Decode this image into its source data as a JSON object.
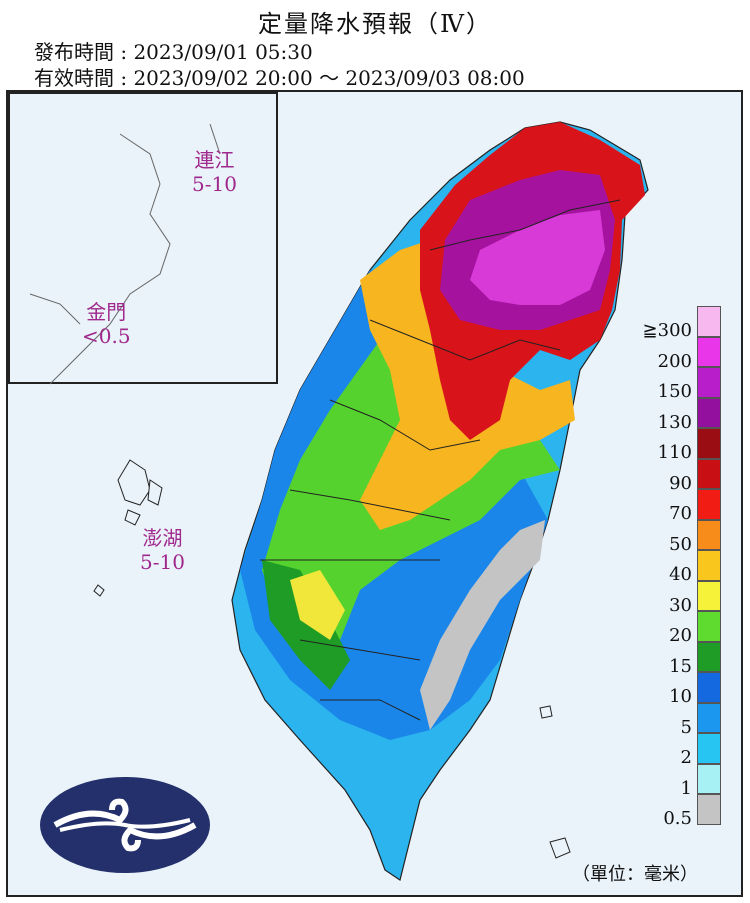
{
  "header": {
    "title": "定量降水預報（Ⅳ）",
    "issue_time": "發布時間 : 2023/09/01 05:30",
    "valid_time": "有效時間 : 2023/09/02 20:00 ～ 2023/09/03 08:00"
  },
  "areas": {
    "matsu": {
      "name": "連江",
      "range": "5-10"
    },
    "kinmen": {
      "name": "金門",
      "range": "<0.5"
    },
    "penghu": {
      "name": "澎湖",
      "range": "5-10"
    }
  },
  "legend": {
    "levels": [
      {
        "label": "≧300",
        "color": "#f6b8ee"
      },
      {
        "label": "200",
        "color": "#e936e8"
      },
      {
        "label": "150",
        "color": "#b81ec9"
      },
      {
        "label": "130",
        "color": "#930f9e"
      },
      {
        "label": "110",
        "color": "#9a0d13"
      },
      {
        "label": "90",
        "color": "#c80f14"
      },
      {
        "label": "70",
        "color": "#f11d14"
      },
      {
        "label": "50",
        "color": "#f78c1a"
      },
      {
        "label": "40",
        "color": "#f8c61d"
      },
      {
        "label": "30",
        "color": "#f6f23a"
      },
      {
        "label": "20",
        "color": "#5fdb2f"
      },
      {
        "label": "15",
        "color": "#1e9c25"
      },
      {
        "label": "10",
        "color": "#1569e0"
      },
      {
        "label": "5",
        "color": "#1b97f0"
      },
      {
        "label": "2",
        "color": "#27c6f2"
      },
      {
        "label": "1",
        "color": "#a7f1f4"
      },
      {
        "label": "0.5",
        "color": "#c4c4c4"
      }
    ],
    "unit": "（單位：毫米）"
  },
  "logo": {
    "name": "central-weather-logo",
    "color": "#24306b"
  }
}
